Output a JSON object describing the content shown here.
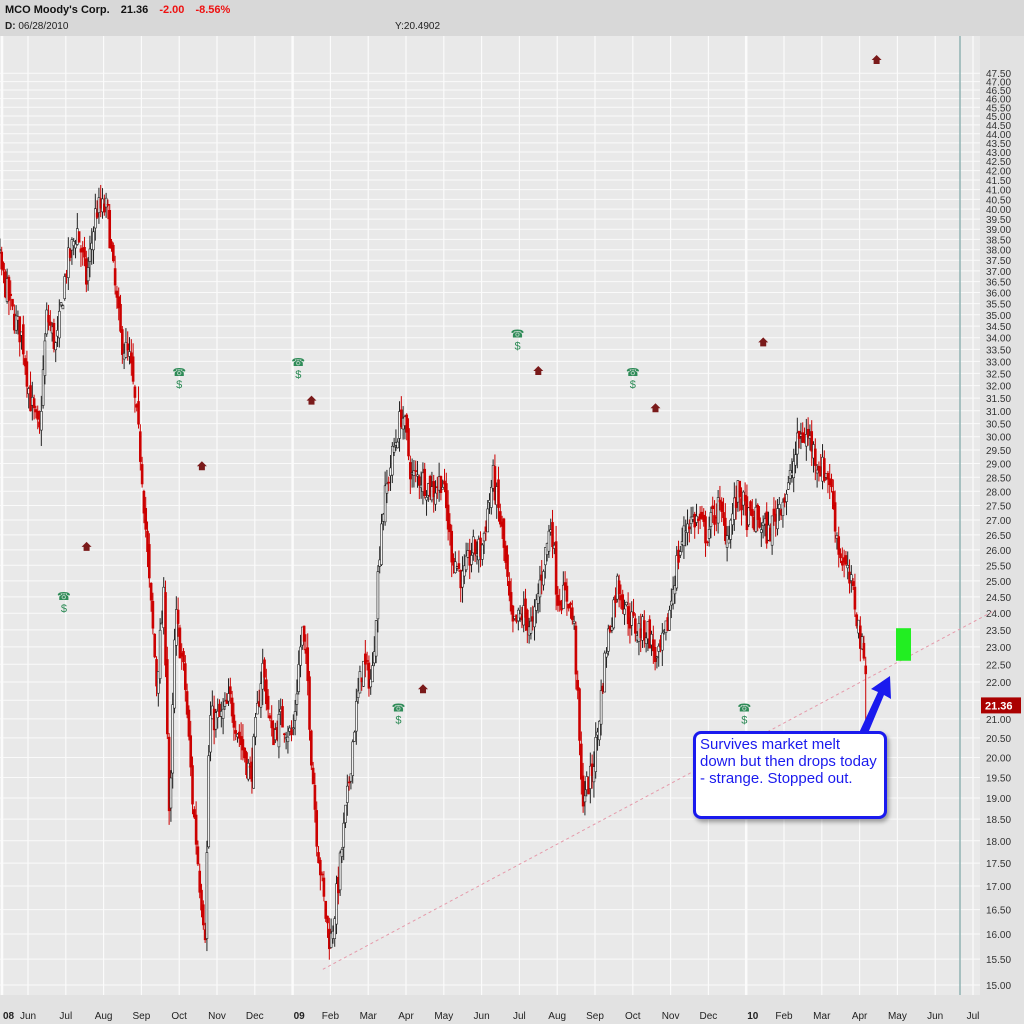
{
  "header": {
    "symbol_name": "MCO Moody's Corp.",
    "last": "21.36",
    "change": "-2.00",
    "change_pct": "-8.56%",
    "date_label": "D:",
    "date_value": "06/28/2010",
    "y_readout": "Y:20.4902"
  },
  "callout": {
    "text": "Survives market melt down but then drops today - strange. Stopped out."
  },
  "chart_data": {
    "type": "candlestick",
    "title": "MCO Moody's Corp.",
    "y_scale": "log",
    "ylim": [
      15.0,
      47.5
    ],
    "y_tick_step": 0.5,
    "last_price_label": "21.36",
    "x_tick_labels": [
      "08",
      "Jun",
      "Jul",
      "Aug",
      "Sep",
      "Oct",
      "Nov",
      "Dec",
      "09",
      "Feb",
      "Mar",
      "Apr",
      "May",
      "Jun",
      "Jul",
      "Aug",
      "Sep",
      "Oct",
      "Nov",
      "Dec",
      "10",
      "Feb",
      "Mar",
      "Apr",
      "May",
      "Jun",
      "Jul"
    ],
    "x_tick_months": [
      -4,
      1,
      2,
      3,
      4,
      5,
      6,
      7,
      8,
      9,
      10,
      11,
      12,
      13,
      14,
      15,
      16,
      17,
      18,
      19,
      20,
      21,
      22,
      23,
      24,
      25,
      26
    ],
    "price_path_month_close": [
      [
        -0.6,
        38
      ],
      [
        -0.4,
        44.5
      ],
      [
        -0.35,
        43
      ],
      [
        -0.2,
        33
      ],
      [
        -0.1,
        38
      ],
      [
        0.1,
        39
      ],
      [
        0.3,
        37
      ],
      [
        0.6,
        35
      ],
      [
        0.85,
        34
      ],
      [
        1.05,
        31.5
      ],
      [
        1.3,
        30
      ],
      [
        1.5,
        35
      ],
      [
        1.75,
        33.5
      ],
      [
        2,
        37
      ],
      [
        2.3,
        39
      ],
      [
        2.55,
        36.5
      ],
      [
        2.8,
        40
      ],
      [
        3.1,
        40
      ],
      [
        3.25,
        37
      ],
      [
        3.45,
        34
      ],
      [
        3.7,
        33
      ],
      [
        4,
        29
      ],
      [
        4.2,
        25
      ],
      [
        4.4,
        22
      ],
      [
        4.6,
        24.5
      ],
      [
        4.75,
        18
      ],
      [
        4.9,
        24
      ],
      [
        5.15,
        22
      ],
      [
        5.35,
        19
      ],
      [
        5.55,
        17
      ],
      [
        5.7,
        16
      ],
      [
        5.8,
        21
      ],
      [
        6.1,
        21
      ],
      [
        6.35,
        21.5
      ],
      [
        6.6,
        20.5
      ],
      [
        6.9,
        19.5
      ],
      [
        7.2,
        22.5
      ],
      [
        7.45,
        20.5
      ],
      [
        7.7,
        21
      ],
      [
        8,
        20.5
      ],
      [
        8.25,
        23.5
      ],
      [
        8.4,
        22
      ],
      [
        8.5,
        20
      ],
      [
        8.65,
        18
      ],
      [
        8.85,
        16.5
      ],
      [
        9,
        15.8
      ],
      [
        9.2,
        17
      ],
      [
        9.45,
        19
      ],
      [
        9.65,
        21
      ],
      [
        9.85,
        22.5
      ],
      [
        10.1,
        22
      ],
      [
        10.35,
        27
      ],
      [
        10.6,
        29
      ],
      [
        10.9,
        31
      ],
      [
        11.15,
        28.5
      ],
      [
        11.4,
        28.5
      ],
      [
        11.7,
        28
      ],
      [
        11.95,
        28.5
      ],
      [
        12.2,
        26
      ],
      [
        12.5,
        25
      ],
      [
        12.75,
        26
      ],
      [
        13,
        26
      ],
      [
        13.3,
        28.5
      ],
      [
        13.55,
        26.5
      ],
      [
        13.8,
        23.5
      ],
      [
        14.1,
        24
      ],
      [
        14.35,
        23.5
      ],
      [
        14.55,
        25
      ],
      [
        14.85,
        27
      ],
      [
        15,
        24.5
      ],
      [
        15.3,
        24.5
      ],
      [
        15.45,
        23.5
      ],
      [
        15.65,
        19
      ],
      [
        15.9,
        19.5
      ],
      [
        16.05,
        20.5
      ],
      [
        16.3,
        23
      ],
      [
        16.6,
        25
      ],
      [
        16.85,
        24
      ],
      [
        17.1,
        23.5
      ],
      [
        17.4,
        23.5
      ],
      [
        17.65,
        22.5
      ],
      [
        17.9,
        23.5
      ],
      [
        18.15,
        25.5
      ],
      [
        18.45,
        27
      ],
      [
        18.7,
        27
      ],
      [
        18.95,
        26.5
      ],
      [
        19.25,
        27.5
      ],
      [
        19.5,
        26.5
      ],
      [
        19.8,
        28
      ],
      [
        20.05,
        27
      ],
      [
        20.3,
        27
      ],
      [
        20.6,
        26.5
      ],
      [
        20.85,
        27.5
      ],
      [
        21.1,
        28
      ],
      [
        21.4,
        30
      ],
      [
        21.65,
        30
      ],
      [
        21.9,
        29
      ],
      [
        22.2,
        28.5
      ],
      [
        22.45,
        26
      ],
      [
        22.6,
        25.5
      ],
      [
        22.85,
        24.5
      ],
      [
        23.05,
        23
      ],
      [
        23.15,
        22.5
      ],
      [
        23.2,
        21.36
      ]
    ],
    "trendline": {
      "from": [
        8.8,
        15.3
      ],
      "to": [
        26.6,
        24.1
      ]
    },
    "stop_zone": {
      "low": 22.6,
      "high": 23.55
    },
    "dividend_markers": [
      [
        -0.5,
        26.1
      ],
      [
        2.55,
        26.1
      ],
      [
        5.6,
        28.9
      ],
      [
        8.5,
        31.4
      ],
      [
        11.45,
        21.8
      ],
      [
        14.5,
        32.6
      ],
      [
        17.6,
        31.1
      ],
      [
        20.45,
        33.8
      ],
      [
        23.45,
        48.3
      ]
    ],
    "earnings_markers": [
      [
        5.0,
        32.4
      ],
      [
        8.15,
        32.8
      ],
      [
        13.95,
        34.0
      ],
      [
        17.0,
        32.4
      ],
      [
        1.95,
        24.4
      ],
      [
        10.8,
        21.2
      ],
      [
        19.95,
        21.2
      ]
    ]
  },
  "colors": {
    "up": "#222222",
    "down": "#cc0000",
    "stop": "#22ee22",
    "callout": "#1a1aee",
    "label_bg": "#aa0000"
  }
}
